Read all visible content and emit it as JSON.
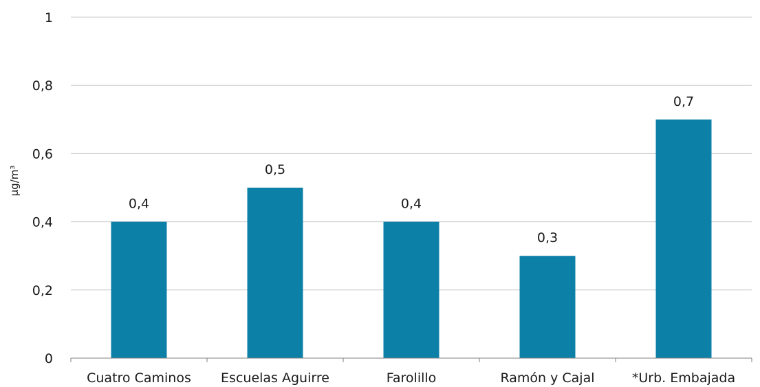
{
  "chart_data": {
    "type": "bar",
    "title": "",
    "xlabel": "",
    "ylabel": "µg/m³",
    "categories": [
      "Cuatro Caminos",
      "Escuelas Aguirre",
      "Farolillo",
      "Ramón y Cajal",
      "*Urb. Embajada"
    ],
    "values": [
      0.4,
      0.5,
      0.4,
      0.3,
      0.7
    ],
    "data_labels": [
      "0,4",
      "0,5",
      "0,4",
      "0,3",
      "0,7"
    ],
    "ylim": [
      0,
      1
    ],
    "y_ticks": [
      {
        "value": 0,
        "label": "0"
      },
      {
        "value": 0.2,
        "label": "0,2"
      },
      {
        "value": 0.4,
        "label": "0,4"
      },
      {
        "value": 0.6,
        "label": "0,6"
      },
      {
        "value": 0.8,
        "label": "0,8"
      },
      {
        "value": 1,
        "label": "1"
      }
    ],
    "grid": true,
    "legend": "none",
    "bar_color": "#0d80a8"
  }
}
